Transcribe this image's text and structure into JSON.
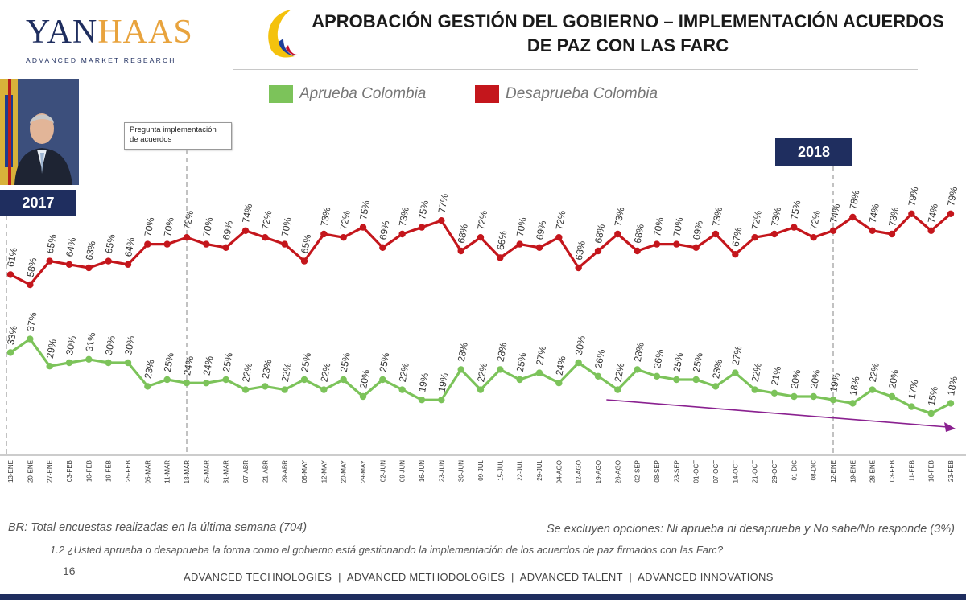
{
  "header": {
    "logo_brand_a": "YAN",
    "logo_brand_b": "HAAS",
    "logo_sub": "ADVANCED MARKET RESEARCH",
    "title_line1": "APROBACIÓN GESTIÓN DEL GOBIERNO – IMPLEMENTACIÓN ACUERDOS",
    "title_line2": "DE PAZ CON LAS FARC"
  },
  "badges": {
    "y2017": "2017",
    "y2018": "2018"
  },
  "note": "Pregunta implementación de acuerdos",
  "colors": {
    "approve": "#7cc35a",
    "disapprove": "#c4161c",
    "navy": "#1f2e5f",
    "trend": "#8a2190"
  },
  "chart_data": {
    "type": "line",
    "title": "APROBACIÓN GESTIÓN DEL GOBIERNO – IMPLEMENTACIÓN ACUERDOS DE PAZ CON LAS FARC",
    "categories": [
      "13-ENE",
      "20-ENE",
      "27-ENE",
      "03-FEB",
      "10-FEB",
      "19-FEB",
      "25-FEB",
      "05-MAR",
      "11-MAR",
      "18-MAR",
      "25-MAR",
      "31-MAR",
      "07-ABR",
      "21-ABR",
      "29-ABR",
      "06-MAY",
      "12-MAY",
      "20-MAY",
      "29-MAY",
      "02-JUN",
      "09-JUN",
      "16-JUN",
      "23-JUN",
      "30-JUN",
      "09-JUL",
      "15-JUL",
      "22-JUL",
      "29-JUL",
      "04-AGO",
      "12-AGO",
      "19-AGO",
      "26-AGO",
      "02-SEP",
      "08-SEP",
      "23-SEP",
      "01-OCT",
      "07-OCT",
      "14-OCT",
      "21-OCT",
      "29-OCT",
      "01-DIC",
      "08-DIC",
      "12-ENE",
      "19-ENE",
      "28-ENE",
      "03-FEB",
      "11-FEB",
      "18-FEB",
      "23-FEB"
    ],
    "series": [
      {
        "name": "Desaprueba Colombia",
        "values": [
          61,
          58,
          65,
          64,
          63,
          65,
          64,
          70,
          70,
          72,
          70,
          69,
          74,
          72,
          70,
          65,
          73,
          72,
          75,
          69,
          73,
          75,
          77,
          68,
          72,
          66,
          70,
          69,
          72,
          63,
          68,
          73,
          68,
          70,
          70,
          69,
          73,
          67,
          72,
          73,
          75,
          72,
          74,
          78,
          74,
          73,
          79,
          74,
          79
        ]
      },
      {
        "name": "Aprueba Colombia",
        "values": [
          33,
          37,
          29,
          30,
          31,
          30,
          30,
          23,
          25,
          24,
          24,
          25,
          22,
          23,
          22,
          25,
          22,
          25,
          20,
          25,
          22,
          19,
          19,
          28,
          22,
          28,
          25,
          27,
          24,
          30,
          26,
          22,
          28,
          26,
          25,
          25,
          23,
          27,
          22,
          21,
          20,
          20,
          19,
          18,
          22,
          20,
          17,
          15,
          18
        ]
      }
    ],
    "legend": [
      "Aprueba Colombia",
      "Desaprueba Colombia"
    ],
    "legend_position": "top",
    "markers": [
      {
        "label": "Pregunta implementación de acuerdos",
        "at": "18-MAR"
      },
      {
        "label": "2018",
        "at": "12-ENE"
      }
    ],
    "trend": {
      "from": "26-AGO",
      "to": "23-FEB",
      "direction": "down"
    }
  },
  "footer": {
    "base": "BR: Total encuestas realizadas en la última semana (704)",
    "excluded": "Se excluyen opciones: Ni aprueba ni desaprueba y No sabe/No responde (3%)",
    "question": "1.2 ¿Usted aprueba o desaprueba la forma como el gobierno está gestionando la implementación de los acuerdos de paz firmados con las Farc?",
    "page": "16",
    "tagline": "ADVANCED TECHNOLOGIES  |  ADVANCED METHODOLOGIES  |  ADVANCED TALENT  |  ADVANCED INNOVATIONS"
  }
}
